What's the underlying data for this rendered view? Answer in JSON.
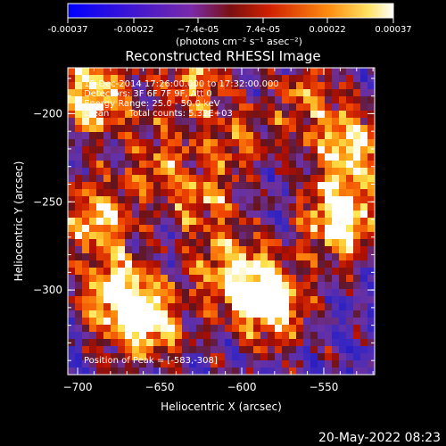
{
  "chart_data": {
    "type": "heatmap",
    "title": "Reconstructed RHESSI Image",
    "xlabel": "Heliocentric X (arcsec)",
    "ylabel": "Heliocentric Y (arcsec)",
    "xlim": [
      -706,
      -519
    ],
    "ylim": [
      -348,
      -174
    ],
    "x_ticks": [
      -700,
      -650,
      -600,
      -550
    ],
    "y_ticks": [
      -200,
      -250,
      -300
    ],
    "x_tick_labels": [
      "−700",
      "−650",
      "−600",
      "−550"
    ],
    "y_tick_labels": [
      "−200",
      "−250",
      "−300"
    ],
    "colorbar": {
      "range": [
        -0.00037,
        0.00037
      ],
      "ticks": [
        -0.00037,
        -0.00022,
        -7.4e-05,
        7.4e-05,
        0.00022,
        0.00037
      ],
      "tick_labels": [
        "-0.00037",
        "-0.00022",
        "−7.4e-05",
        "7.4e-05",
        "0.00022",
        "0.00037"
      ],
      "label": "(photons cm⁻² s⁻¹ asec⁻²)"
    },
    "colors": {
      "low": "#1a1acc",
      "mid_low": "#7a3aa6",
      "mid": "#6a1010",
      "high": "#ff7a10",
      "peak": "#ffffff"
    },
    "annotations": [
      "15-Dec-2014 17:26:00.000 to 17:32:00.000",
      "Detectors: 3F 6F 7F 9F, Att 0",
      "Energy Range: 25.0 - 50.0 keV",
      "Clean       Total counts: 5.32E+03"
    ],
    "peak_label": "Position of Peak = [-583,-308]",
    "bright_regions": [
      {
        "x": -540,
        "y": -260,
        "strength": 1.0
      },
      {
        "x": -583,
        "y": -308,
        "strength": 1.0
      },
      {
        "x": -675,
        "y": -305,
        "strength": 0.95
      },
      {
        "x": -690,
        "y": -190,
        "strength": 0.9
      },
      {
        "x": -688,
        "y": -260,
        "strength": 0.8
      },
      {
        "x": -605,
        "y": -290,
        "strength": 0.7
      },
      {
        "x": -625,
        "y": -250,
        "strength": 0.55
      },
      {
        "x": -650,
        "y": -225,
        "strength": 0.5
      },
      {
        "x": -655,
        "y": -320,
        "strength": 0.7
      },
      {
        "x": -600,
        "y": -215,
        "strength": 0.45
      },
      {
        "x": -560,
        "y": -190,
        "strength": 0.5
      },
      {
        "x": -535,
        "y": -220,
        "strength": 0.8
      },
      {
        "x": -630,
        "y": -180,
        "strength": 0.6
      }
    ]
  },
  "footer": {
    "timestamp": "20-May-2022 08:23"
  }
}
